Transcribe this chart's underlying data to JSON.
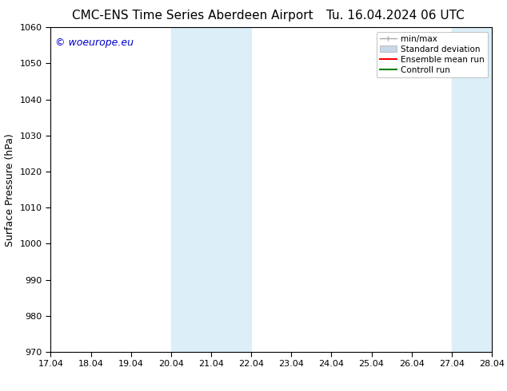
{
  "title_left": "CMC-ENS Time Series Aberdeen Airport",
  "title_right": "Tu. 16.04.2024 06 UTC",
  "ylabel": "Surface Pressure (hPa)",
  "xlabel": "",
  "ylim": [
    970,
    1060
  ],
  "yticks": [
    970,
    980,
    990,
    1000,
    1010,
    1020,
    1030,
    1040,
    1050,
    1060
  ],
  "xtick_labels": [
    "17.04",
    "18.04",
    "19.04",
    "20.04",
    "21.04",
    "22.04",
    "23.04",
    "24.04",
    "25.04",
    "26.04",
    "27.04",
    "28.04"
  ],
  "xtick_positions": [
    0,
    1,
    2,
    3,
    4,
    5,
    6,
    7,
    8,
    9,
    10,
    11
  ],
  "shaded_regions": [
    {
      "xmin": 3.0,
      "xmax": 3.5,
      "color": "#d6eaf5"
    },
    {
      "xmin": 3.5,
      "xmax": 4.5,
      "color": "#daeaf8"
    },
    {
      "xmin": 4.5,
      "xmax": 5.0,
      "color": "#d6eaf5"
    },
    {
      "xmin": 10.0,
      "xmax": 10.5,
      "color": "#d6eaf5"
    },
    {
      "xmin": 10.5,
      "xmax": 11.0,
      "color": "#daeaf8"
    }
  ],
  "watermark_text": "© woeurope.eu",
  "watermark_color": "#0000cc",
  "bg_color": "#ffffff",
  "plot_bg_color": "#ffffff",
  "legend_items": [
    {
      "label": "min/max",
      "color": "#aaaaaa",
      "lw": 1.0,
      "style": "solid"
    },
    {
      "label": "Standard deviation",
      "color": "#c8d8e8",
      "lw": 6,
      "style": "solid"
    },
    {
      "label": "Ensemble mean run",
      "color": "#ff0000",
      "lw": 1.5,
      "style": "solid"
    },
    {
      "label": "Controll run",
      "color": "#008000",
      "lw": 1.5,
      "style": "solid"
    }
  ],
  "title_fontsize": 11,
  "tick_fontsize": 8,
  "ylabel_fontsize": 9,
  "watermark_fontsize": 9
}
